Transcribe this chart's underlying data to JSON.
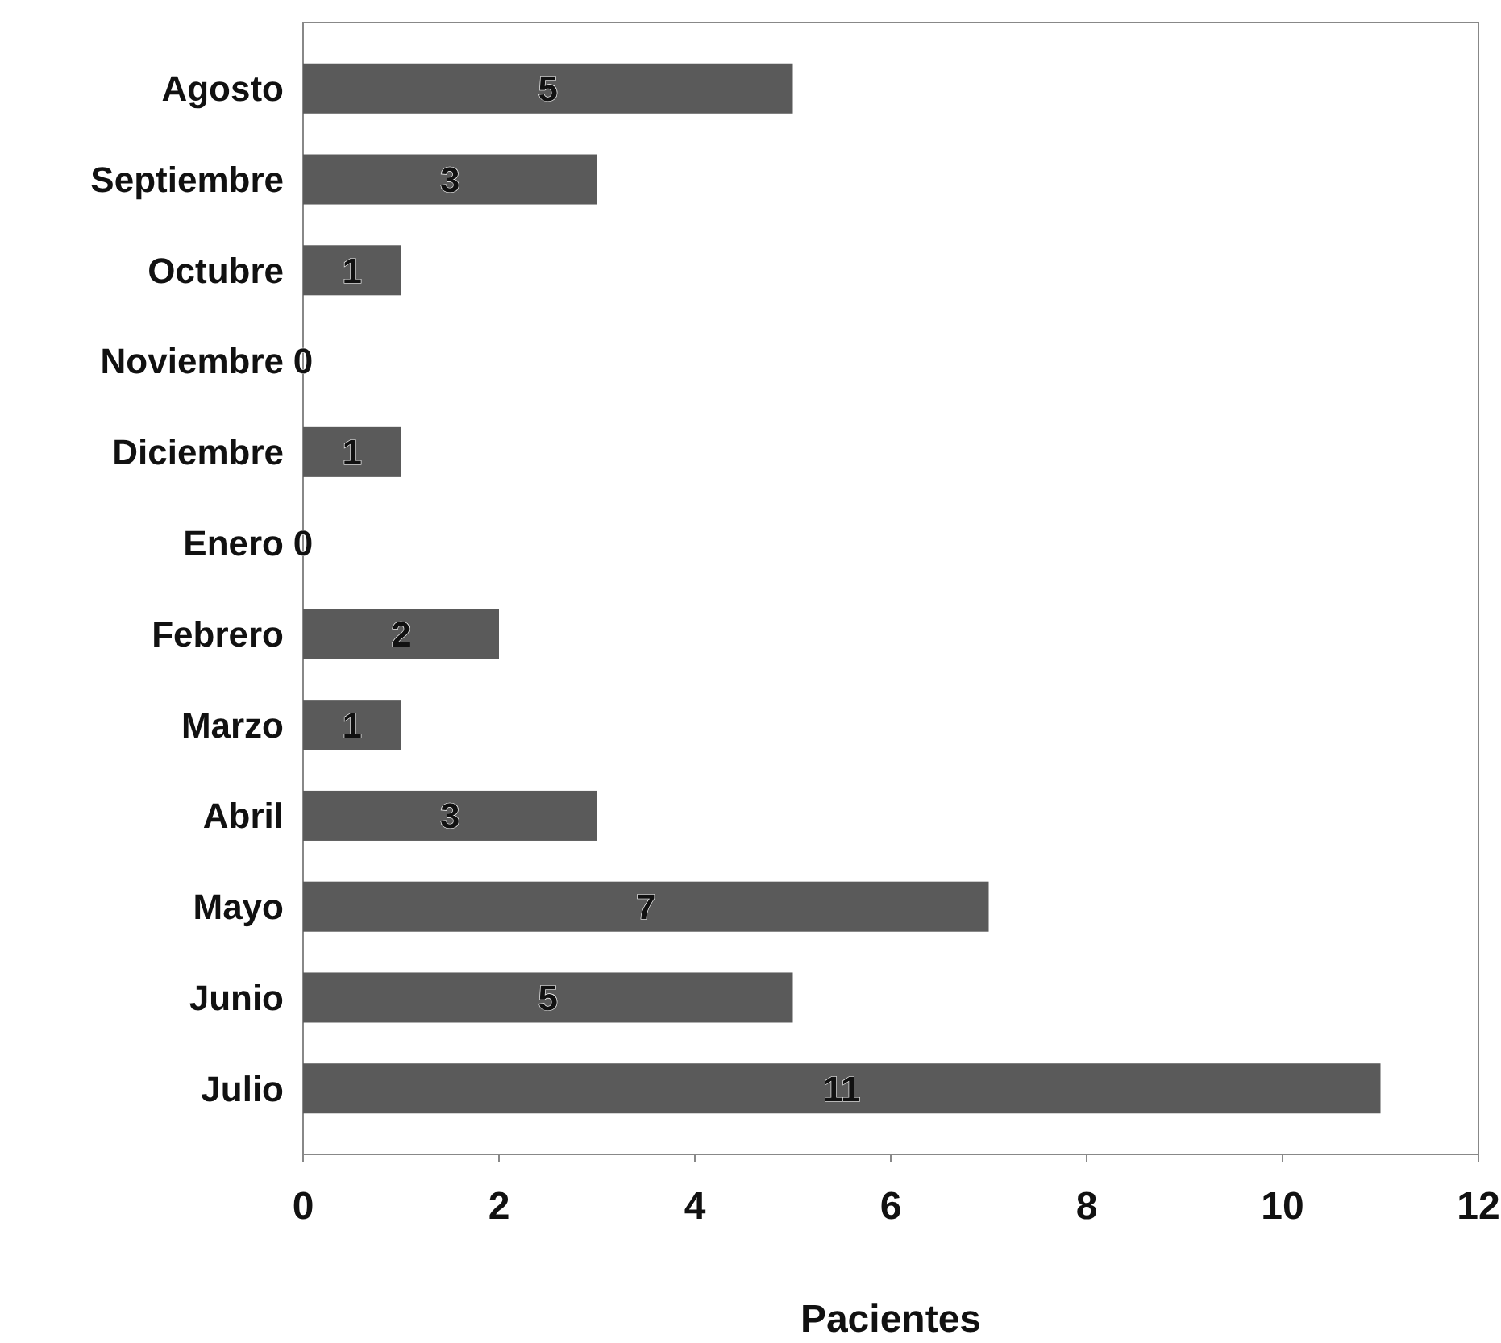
{
  "chart_data": {
    "type": "bar",
    "orientation": "horizontal",
    "xlabel": "Pacientes",
    "categories": [
      "Agosto",
      "Septiembre",
      "Octubre",
      "Noviembre",
      "Diciembre",
      "Enero",
      "Febrero",
      "Marzo",
      "Abril",
      "Mayo",
      "Junio",
      "Julio"
    ],
    "values": [
      5,
      3,
      1,
      0,
      1,
      0,
      2,
      1,
      3,
      7,
      5,
      11
    ],
    "color": "#5a5a5a",
    "xlim": [
      0,
      12
    ],
    "xticks": [
      0,
      2,
      4,
      6,
      8,
      10,
      12
    ],
    "data_labels": true,
    "grid": false
  }
}
